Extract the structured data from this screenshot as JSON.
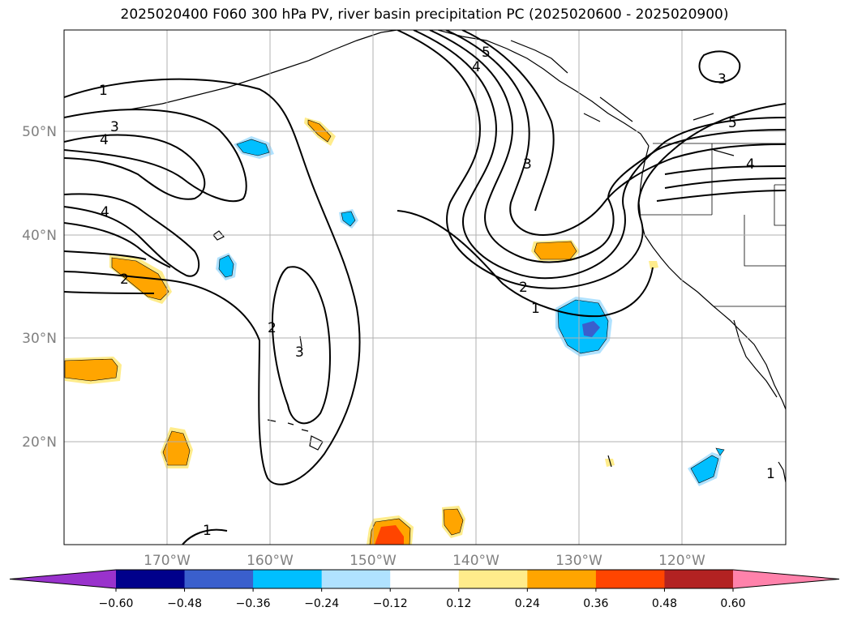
{
  "title": "2025020400 F060 300 hPa PV, river basin precipitation PC (2025020600 - 2025020900)",
  "lat_labels": [
    "50°N",
    "40°N",
    "30°N",
    "20°N"
  ],
  "lon_labels": [
    "170°W",
    "160°W",
    "150°W",
    "140°W",
    "130°W",
    "120°W"
  ],
  "contour_labels": [
    "1",
    "3",
    "4",
    "4",
    "2",
    "2",
    "3",
    "5",
    "4",
    "3",
    "2",
    "1",
    "3",
    "5",
    "4",
    "1",
    "1"
  ],
  "colorbar": {
    "ticks": [
      "−0.60",
      "−0.48",
      "−0.36",
      "−0.24",
      "−0.12",
      "0.12",
      "0.24",
      "0.36",
      "0.48",
      "0.60"
    ],
    "colors": [
      "#9932CC",
      "#00008B",
      "#3A5FCD",
      "#00BFFF",
      "#B0E2FF",
      "#FFFFFF",
      "#FFEC8B",
      "#FFA500",
      "#FF4500",
      "#B22222",
      "#FF82AB"
    ]
  },
  "colors": {
    "orange": "#FFA500",
    "light_yellow": "#FFEC8B",
    "red_orange": "#FF4500",
    "deep_sky_blue": "#00BFFF",
    "light_blue": "#B0E2FF",
    "royal_blue": "#3A5FCD",
    "grid": "#b0b0b0"
  }
}
